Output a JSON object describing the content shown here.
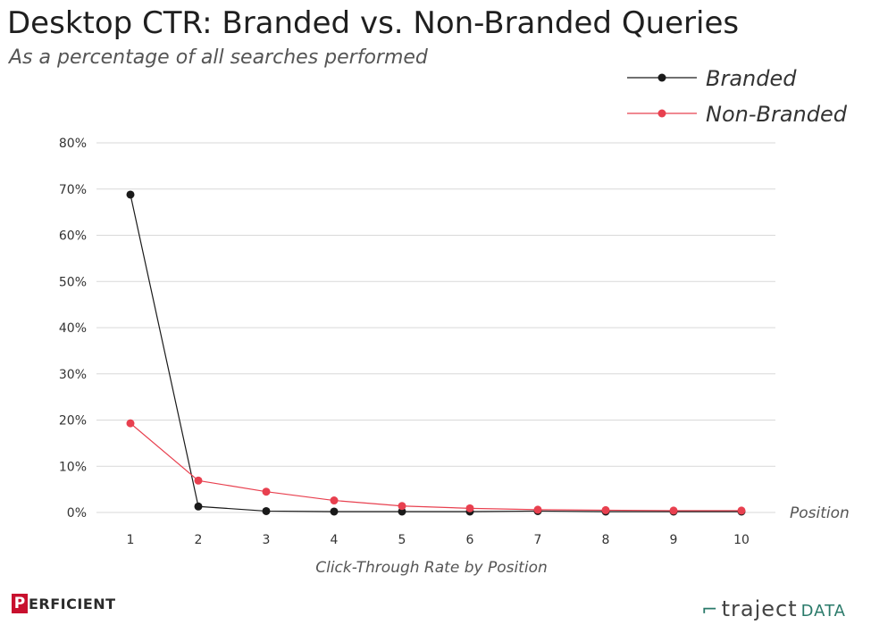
{
  "chart_data": {
    "type": "line",
    "title": "Desktop CTR: Branded vs. Non-Branded Queries",
    "subtitle": "As a percentage of all searches performed",
    "xlabel": "Click-Through Rate by Position",
    "x_axis_end_label": "Position",
    "ylabel": "",
    "x": [
      1,
      2,
      3,
      4,
      5,
      6,
      7,
      8,
      9,
      10
    ],
    "x_tick_labels": [
      "1",
      "2",
      "3",
      "4",
      "5",
      "6",
      "7",
      "8",
      "9",
      "10"
    ],
    "ylim": [
      0,
      80
    ],
    "y_ticks": [
      0,
      10,
      20,
      30,
      40,
      50,
      60,
      70,
      80
    ],
    "y_tick_labels": [
      "0%",
      "10%",
      "20%",
      "30%",
      "40%",
      "50%",
      "60%",
      "70%",
      "80%"
    ],
    "grid": true,
    "legend_position": "top-right",
    "series": [
      {
        "name": "Branded",
        "color": "#1a1a1a",
        "values": [
          68.8,
          1.3,
          0.3,
          0.2,
          0.2,
          0.2,
          0.3,
          0.2,
          0.2,
          0.2
        ]
      },
      {
        "name": "Non-Branded",
        "color": "#e8404f",
        "values": [
          19.3,
          6.9,
          4.5,
          2.6,
          1.4,
          0.9,
          0.6,
          0.5,
          0.4,
          0.4
        ]
      }
    ]
  },
  "footer": {
    "left_logo_mark": "P",
    "left_logo_text": "ERFICIENT",
    "right_logo_mark": "⌐",
    "right_logo_text": "traject",
    "right_logo_suffix": "DATA"
  }
}
